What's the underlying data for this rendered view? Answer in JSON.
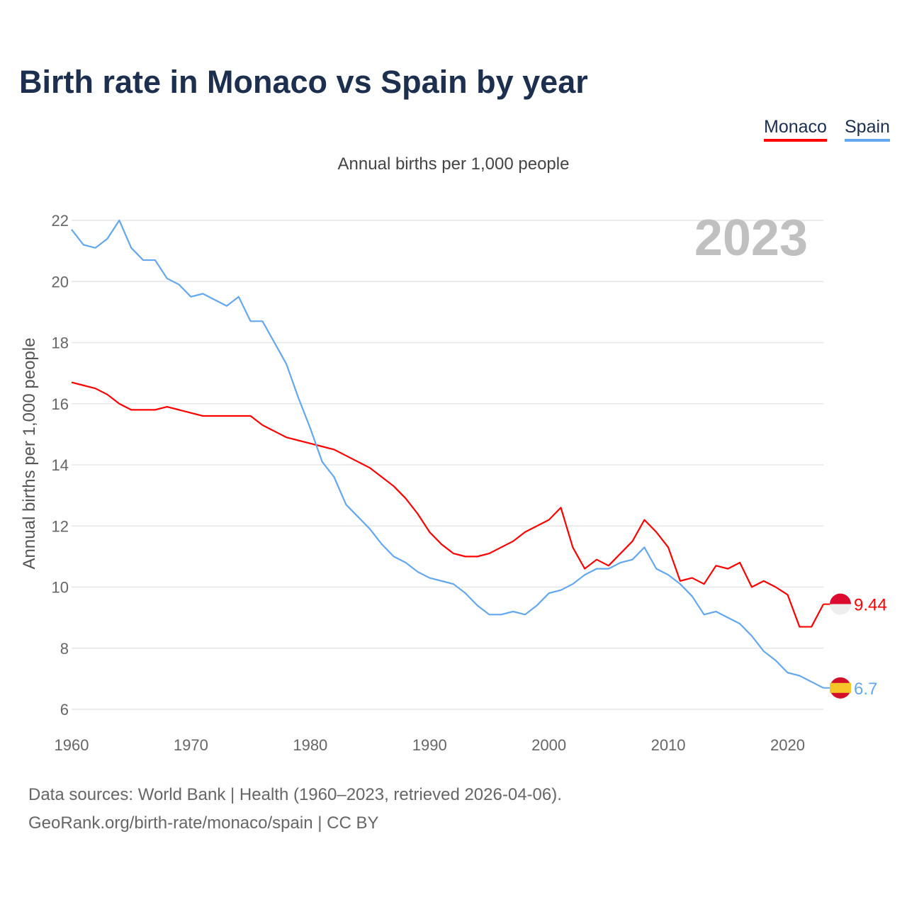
{
  "chart_data": {
    "type": "line",
    "title": "Birth rate in Monaco vs Spain by year",
    "subtitle": "Annual births per 1,000 people",
    "ylabel": "Annual births per 1,000 people",
    "xlabel": "",
    "year_label": "2023",
    "xlim": [
      1960,
      2023
    ],
    "ylim": [
      6,
      22
    ],
    "x_ticks": [
      1960,
      1970,
      1980,
      1990,
      2000,
      2010,
      2020
    ],
    "y_ticks": [
      6,
      8,
      10,
      12,
      14,
      16,
      18,
      20,
      22
    ],
    "grid": true,
    "legend_position": "top-right",
    "x": [
      1960,
      1961,
      1962,
      1963,
      1964,
      1965,
      1966,
      1967,
      1968,
      1969,
      1970,
      1971,
      1972,
      1973,
      1974,
      1975,
      1976,
      1977,
      1978,
      1979,
      1980,
      1981,
      1982,
      1983,
      1984,
      1985,
      1986,
      1987,
      1988,
      1989,
      1990,
      1991,
      1992,
      1993,
      1994,
      1995,
      1996,
      1997,
      1998,
      1999,
      2000,
      2001,
      2002,
      2003,
      2004,
      2005,
      2006,
      2007,
      2008,
      2009,
      2010,
      2011,
      2012,
      2013,
      2014,
      2015,
      2016,
      2017,
      2018,
      2019,
      2020,
      2021,
      2022,
      2023
    ],
    "series": [
      {
        "name": "Monaco",
        "color": "#ff0000",
        "end_label": "9.44",
        "values": [
          16.7,
          16.6,
          16.5,
          16.3,
          16.0,
          15.8,
          15.8,
          15.8,
          15.9,
          15.8,
          15.7,
          15.6,
          15.6,
          15.6,
          15.6,
          15.6,
          15.3,
          15.1,
          14.9,
          14.8,
          14.7,
          14.6,
          14.5,
          14.3,
          14.1,
          13.9,
          13.6,
          13.3,
          12.9,
          12.4,
          11.8,
          11.4,
          11.1,
          11.0,
          11.0,
          11.1,
          11.3,
          11.5,
          11.8,
          12.0,
          12.2,
          12.6,
          11.3,
          10.6,
          10.9,
          10.7,
          11.1,
          11.5,
          12.2,
          11.8,
          11.3,
          10.2,
          10.3,
          10.1,
          10.7,
          10.6,
          10.8,
          10.0,
          10.2,
          10.0,
          9.75,
          8.7,
          8.7,
          9.44
        ]
      },
      {
        "name": "Spain",
        "color": "#63a8ee",
        "end_label": "6.7",
        "values": [
          21.7,
          21.2,
          21.1,
          21.4,
          22.0,
          21.1,
          20.7,
          20.7,
          20.1,
          19.9,
          19.5,
          19.6,
          19.4,
          19.2,
          19.5,
          18.7,
          18.7,
          18.0,
          17.3,
          16.2,
          15.2,
          14.1,
          13.6,
          12.7,
          12.3,
          11.9,
          11.4,
          11.0,
          10.8,
          10.5,
          10.3,
          10.2,
          10.1,
          9.8,
          9.4,
          9.1,
          9.1,
          9.2,
          9.1,
          9.4,
          9.8,
          9.9,
          10.1,
          10.4,
          10.6,
          10.6,
          10.8,
          10.9,
          11.3,
          10.6,
          10.4,
          10.1,
          9.7,
          9.1,
          9.2,
          9.0,
          8.8,
          8.4,
          7.9,
          7.6,
          7.2,
          7.1,
          6.9,
          6.7
        ]
      }
    ],
    "source_lines": [
      "Data sources: World Bank | Health (1960–2023, retrieved 2026-04-06).",
      "GeoRank.org/birth-rate/monaco/spain | CC BY"
    ]
  }
}
